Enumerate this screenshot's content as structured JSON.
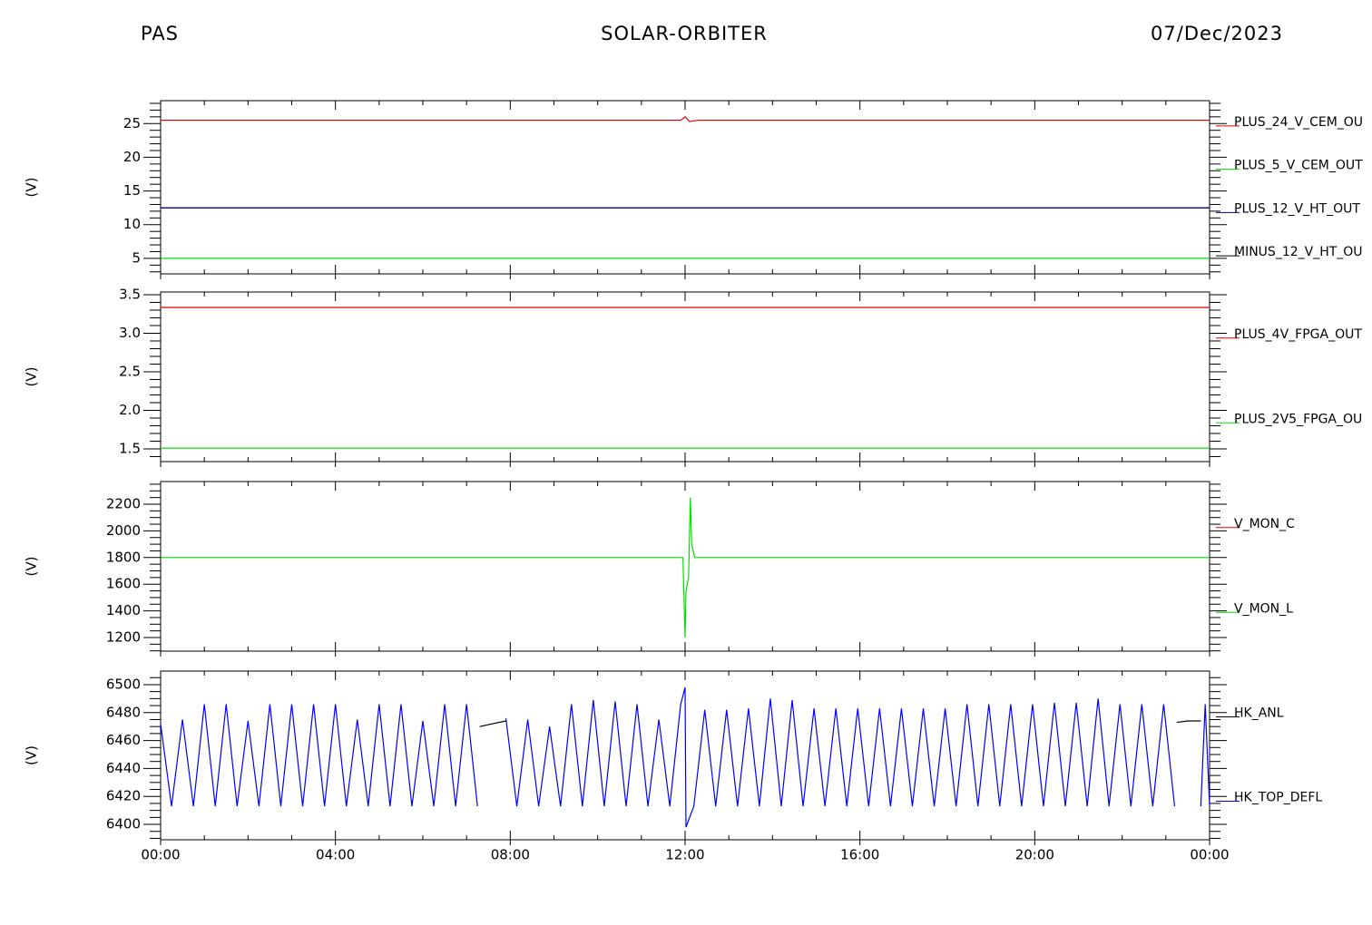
{
  "header": {
    "left": "PAS",
    "center": "SOLAR-ORBITER",
    "right": "07/Dec/2023"
  },
  "chart_data": [
    {
      "type": "line",
      "ylabel": "(V)",
      "xlim": [
        0,
        24
      ],
      "xticks": [
        0,
        4,
        8,
        12,
        16,
        20,
        24
      ],
      "xminorticks": [
        1,
        2,
        3,
        5,
        6,
        7,
        9,
        10,
        11,
        13,
        14,
        15,
        17,
        18,
        19,
        21,
        22,
        23
      ],
      "ylim": [
        2.7,
        28.4
      ],
      "yticks": [
        5,
        10,
        15,
        20,
        25
      ],
      "yminorticks": [
        3,
        4,
        6,
        7,
        8,
        9,
        11,
        12,
        13,
        14,
        16,
        17,
        18,
        19,
        21,
        22,
        23,
        24,
        26,
        27,
        28
      ],
      "series": [
        {
          "name": "PLUS_24_V_CEM_OU",
          "color": "#e00000",
          "x": [
            0,
            6,
            11.9,
            12.0,
            12.1,
            12.3,
            18,
            24
          ],
          "values": [
            25.5,
            25.5,
            25.5,
            26.0,
            25.3,
            25.5,
            25.5,
            25.5
          ]
        },
        {
          "name": "PLUS_5_V_CEM_OUT",
          "color": "#00e000",
          "x": [
            0,
            24
          ],
          "values": [
            5,
            5
          ]
        },
        {
          "name": "PLUS_12_V_HT_OUT",
          "color": "#000080",
          "x": [
            0,
            24
          ],
          "values": [
            12.5,
            12.5
          ]
        },
        {
          "name": "MINUS_12_V_HT_OU",
          "color": "#000000",
          "x": [
            0,
            24
          ],
          "values": [
            12.5,
            12.5
          ]
        }
      ]
    },
    {
      "type": "line",
      "ylabel": "(V)",
      "xlim": [
        0,
        24
      ],
      "xticks": [
        0,
        4,
        8,
        12,
        16,
        20,
        24
      ],
      "xminorticks": [
        1,
        2,
        3,
        5,
        6,
        7,
        9,
        10,
        11,
        13,
        14,
        15,
        17,
        18,
        19,
        21,
        22,
        23
      ],
      "ylim": [
        1.335,
        3.535
      ],
      "yticks": [
        1.5,
        {
          "value": 2,
          "label": "2.0"
        },
        2.5,
        {
          "value": 3,
          "label": "3.0"
        },
        3.5
      ],
      "yminorticks": [
        1.4,
        1.6,
        1.7,
        1.8,
        1.9,
        2.1,
        2.2,
        2.3,
        2.4,
        2.6,
        2.7,
        2.8,
        2.9,
        3.1,
        3.2,
        3.3,
        3.4
      ],
      "series": [
        {
          "name": "PLUS_4V_FPGA_OUT",
          "color": "#e00000",
          "x": [
            0,
            24
          ],
          "values": [
            3.335,
            3.335
          ]
        },
        {
          "name": "PLUS_2V5_FPGA_OU",
          "color": "#00e000",
          "x": [
            0,
            24
          ],
          "values": [
            1.51,
            1.51
          ]
        }
      ]
    },
    {
      "type": "line",
      "ylabel": "(V)",
      "xlim": [
        0,
        24
      ],
      "xticks": [
        0,
        4,
        8,
        12,
        16,
        20,
        24
      ],
      "xminorticks": [
        1,
        2,
        3,
        5,
        6,
        7,
        9,
        10,
        11,
        13,
        14,
        15,
        17,
        18,
        19,
        21,
        22,
        23
      ],
      "ylim": [
        1098,
        2370
      ],
      "yticks": [
        1200,
        1400,
        1600,
        1800,
        2000,
        2200
      ],
      "yminorticks": [
        1100,
        1150,
        1250,
        1300,
        1350,
        1450,
        1500,
        1550,
        1650,
        1700,
        1750,
        1850,
        1900,
        1950,
        2050,
        2100,
        2150,
        2250,
        2300,
        2350
      ],
      "series": [
        {
          "name": "V_MON_C",
          "color": "#e00000",
          "x": [
            0,
            24
          ],
          "values": [
            null,
            null
          ]
        },
        {
          "name": "V_MON_L",
          "color": "#00e000",
          "x": [
            0,
            11.95,
            12.0,
            12.02,
            12.08,
            12.12,
            12.15,
            12.22,
            12.3,
            24
          ],
          "values": [
            1800,
            1800,
            1200,
            1550,
            1650,
            2250,
            1900,
            1800,
            1800,
            1800
          ]
        }
      ]
    },
    {
      "type": "line",
      "ylabel": "(V)",
      "xlim": [
        0,
        24
      ],
      "xticks": [
        {
          "value": 0,
          "label": "00:00"
        },
        {
          "value": 4,
          "label": "04:00"
        },
        {
          "value": 8,
          "label": "08:00"
        },
        {
          "value": 12,
          "label": "12:00"
        },
        {
          "value": 16,
          "label": "16:00"
        },
        {
          "value": 20,
          "label": "20:00"
        },
        {
          "value": 24,
          "label": "00:00"
        }
      ],
      "xminorticks": [
        1,
        2,
        3,
        5,
        6,
        7,
        9,
        10,
        11,
        13,
        14,
        15,
        17,
        18,
        19,
        21,
        22,
        23
      ],
      "ylim": [
        6389,
        6509.7
      ],
      "yticks": [
        6400,
        6420,
        6440,
        6460,
        6480,
        6500
      ],
      "yminorticks": [
        6390,
        6395,
        6405,
        6410,
        6415,
        6425,
        6430,
        6435,
        6445,
        6450,
        6455,
        6465,
        6470,
        6475,
        6485,
        6490,
        6495,
        6505
      ],
      "series": [
        {
          "name": "HK_ANL",
          "color": "#000000",
          "x": [
            7.3,
            7.6,
            7.9,
            8.0,
            23.25,
            23.5,
            23.8
          ],
          "values": [
            6470,
            6472,
            6474,
            null,
            6473,
            6474,
            6474
          ]
        },
        {
          "name": "HK_TOP_DEFL",
          "color": "#0000ff",
          "x": [
            0,
            0.25,
            0.5,
            0.75,
            1,
            1.25,
            1.5,
            1.75,
            2,
            2.25,
            2.5,
            2.75,
            3,
            3.25,
            3.5,
            3.75,
            4,
            4.25,
            4.5,
            4.75,
            5,
            5.25,
            5.5,
            5.75,
            6,
            6.25,
            6.5,
            6.75,
            7,
            7.25,
            7.5,
            7.9,
            8.15,
            8.4,
            8.65,
            8.9,
            9.15,
            9.4,
            9.65,
            9.9,
            10.15,
            10.4,
            10.65,
            10.9,
            11.15,
            11.4,
            11.65,
            11.9,
            12.0,
            12.02,
            12.2,
            12.45,
            12.7,
            12.95,
            13.2,
            13.45,
            13.7,
            13.95,
            14.2,
            14.45,
            14.7,
            14.95,
            15.2,
            15.45,
            15.7,
            15.95,
            16.2,
            16.45,
            16.7,
            16.95,
            17.2,
            17.45,
            17.7,
            17.95,
            18.2,
            18.45,
            18.7,
            18.95,
            19.2,
            19.45,
            19.7,
            19.95,
            20.2,
            20.45,
            20.7,
            20.95,
            21.2,
            21.45,
            21.7,
            21.95,
            22.2,
            22.45,
            22.7,
            22.95,
            23.2,
            23.5,
            23.8,
            23.9,
            24
          ],
          "values": [
            6472,
            6413,
            6475,
            6413,
            6486,
            6413,
            6486,
            6413,
            6474,
            6413,
            6486,
            6413,
            6486,
            6413,
            6486,
            6413,
            6486,
            6413,
            6475,
            6413,
            6486,
            6413,
            6486,
            6413,
            6474,
            6413,
            6486,
            6413,
            6486,
            6413,
            null,
            6476,
            6413,
            6475,
            6413,
            6470,
            6413,
            6486,
            6413,
            6489,
            6413,
            6488,
            6413,
            6486,
            6413,
            6475,
            6413,
            6486,
            6498,
            6398,
            6413,
            6482,
            6413,
            6482,
            6413,
            6483,
            6413,
            6490,
            6413,
            6489,
            6413,
            6483,
            6413,
            6483,
            6413,
            6483,
            6413,
            6483,
            6413,
            6483,
            6413,
            6483,
            6413,
            6483,
            6413,
            6486,
            6413,
            6486,
            6413,
            6486,
            6413,
            6486,
            6413,
            6487,
            6413,
            6487,
            6413,
            6490,
            6413,
            6486,
            6413,
            6486,
            6413,
            6486,
            6413,
            null,
            6413,
            6486,
            6413
          ]
        }
      ]
    }
  ]
}
